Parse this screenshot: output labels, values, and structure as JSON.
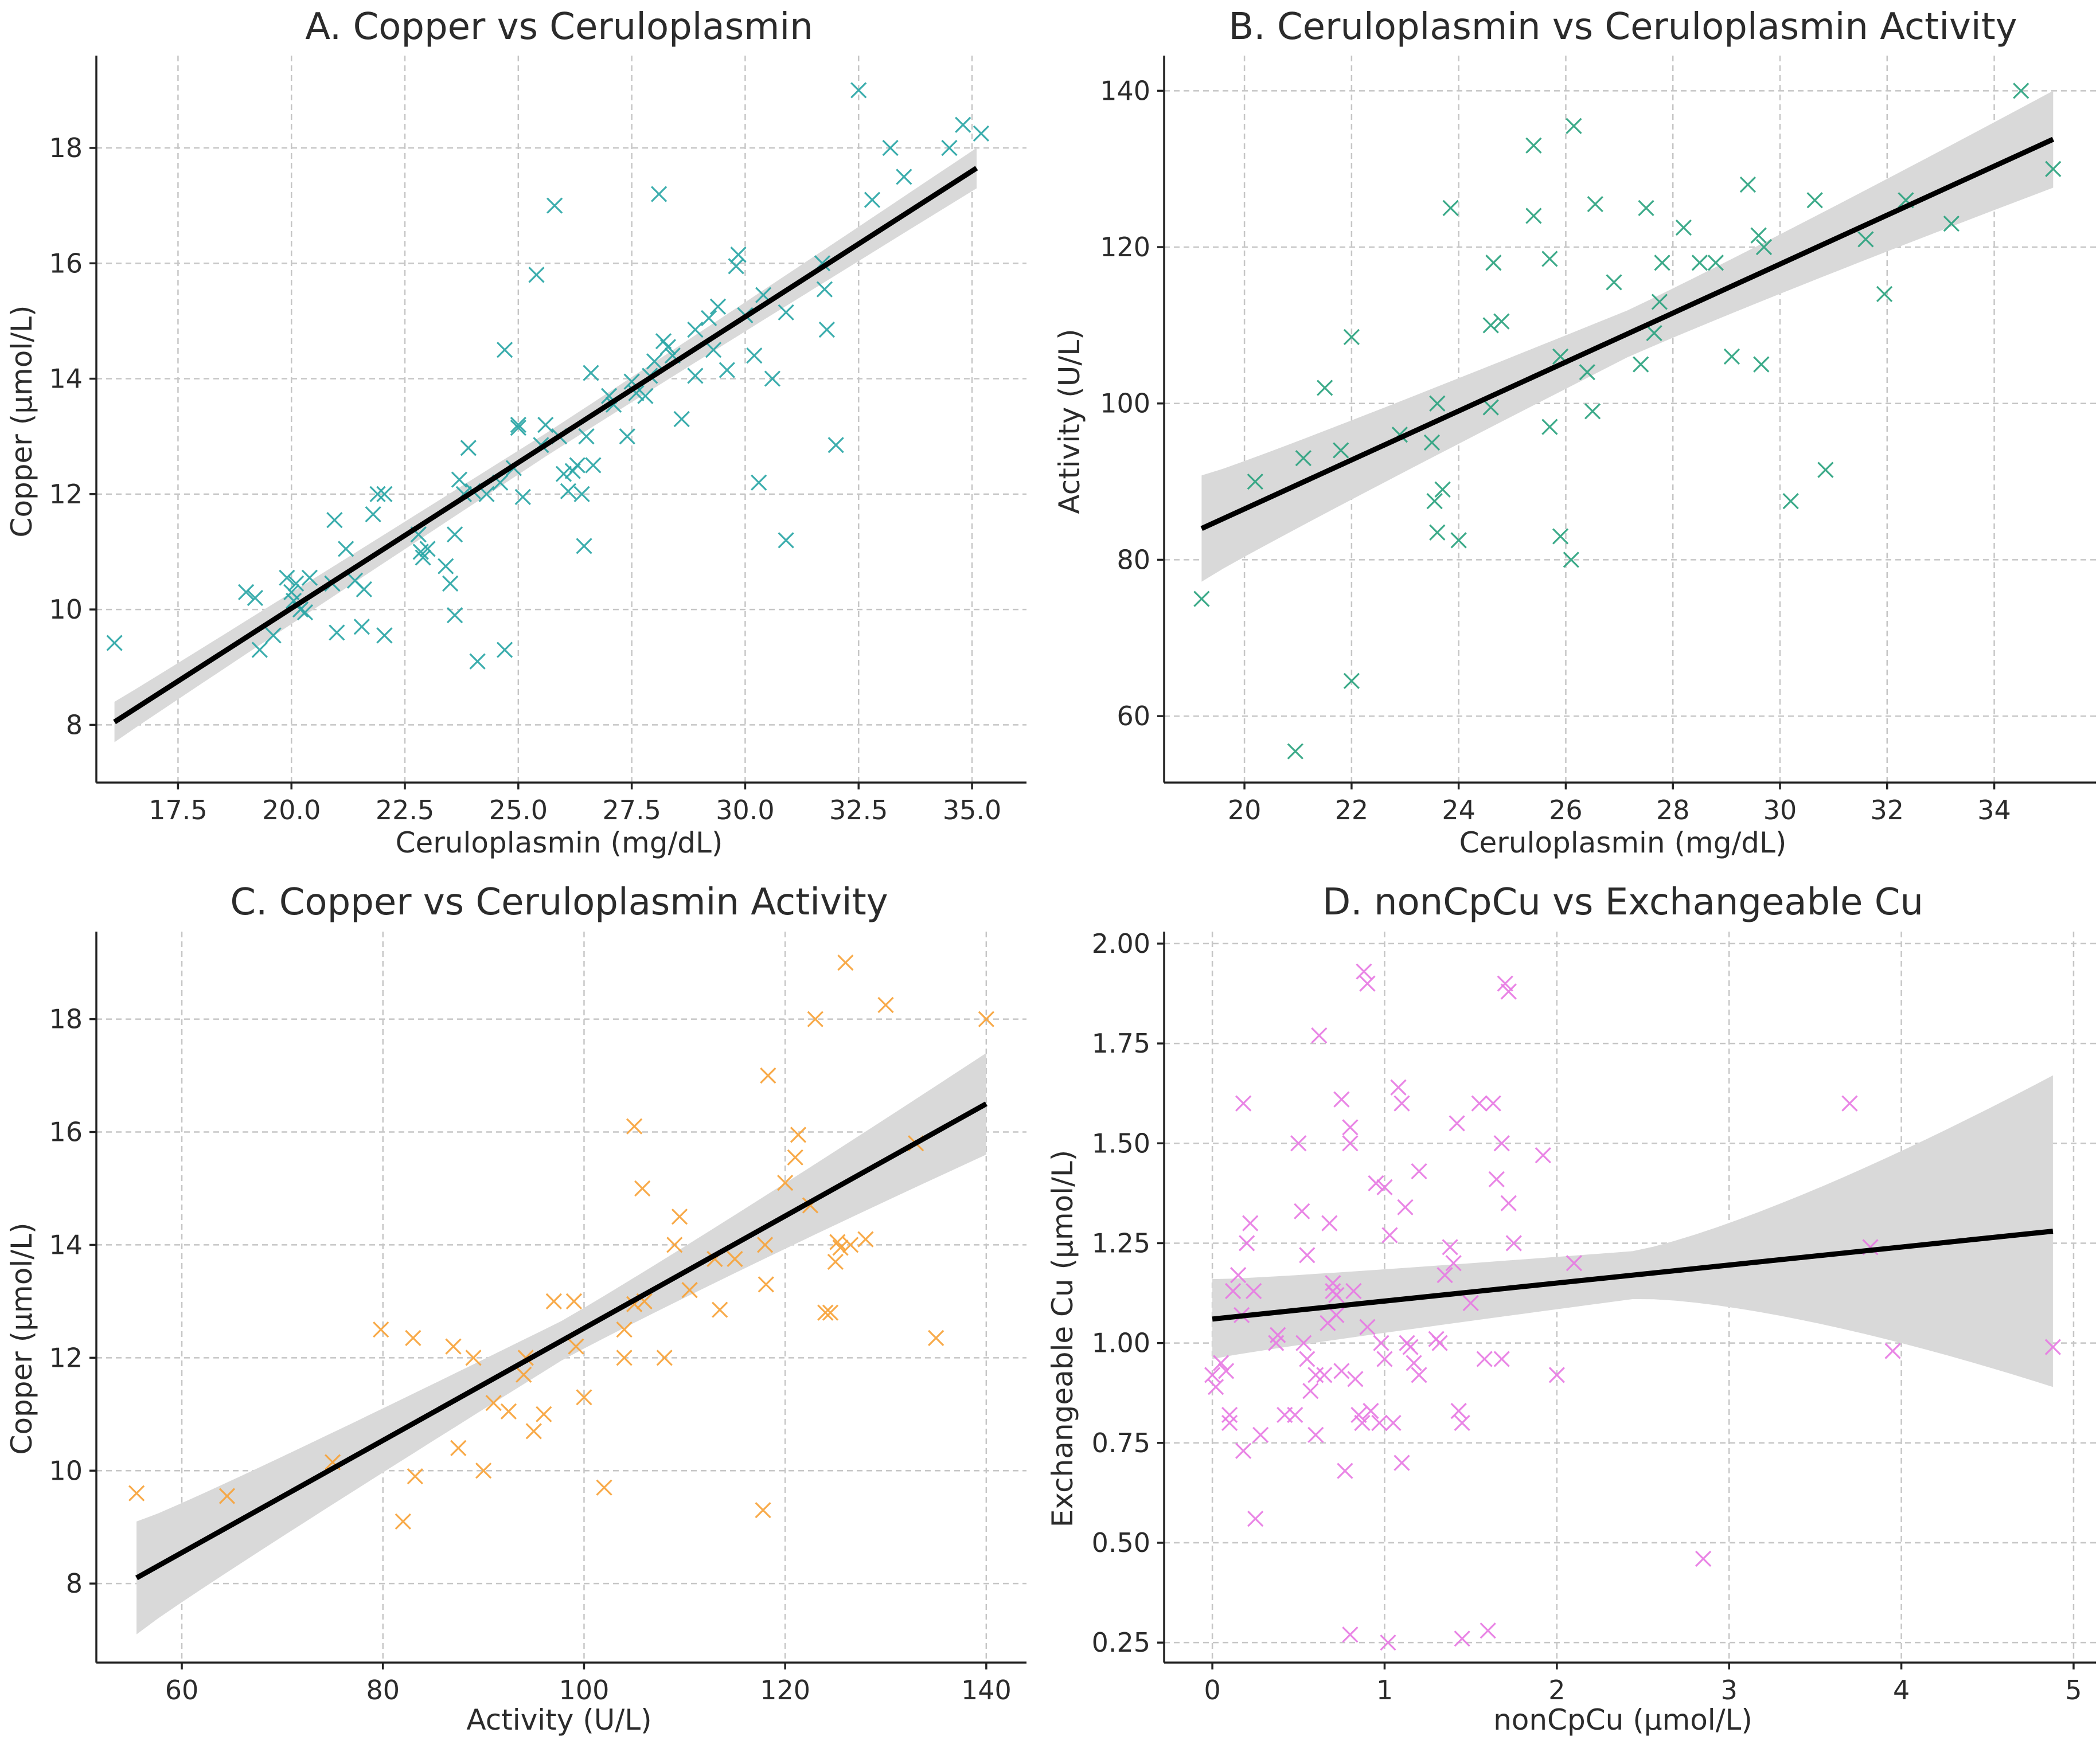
{
  "chart_data": [
    {
      "id": "A",
      "type": "scatter",
      "title": "A. Copper vs Ceruloplasmin",
      "xlabel": "Ceruloplasmin (mg/dL)",
      "ylabel": "Copper (µmol/L)",
      "xlim": [
        15.7,
        36.2
      ],
      "ylim": [
        7.0,
        19.6
      ],
      "xticks": [
        17.5,
        20.0,
        22.5,
        25.0,
        27.5,
        30.0,
        32.5,
        35.0
      ],
      "xtick_labels": [
        "17.5",
        "20.0",
        "22.5",
        "25.0",
        "27.5",
        "30.0",
        "32.5",
        "35.0"
      ],
      "yticks": [
        8,
        10,
        12,
        14,
        16,
        18
      ],
      "ytick_labels": [
        "8",
        "10",
        "12",
        "14",
        "16",
        "18"
      ],
      "marker_color": "#2aa6a6",
      "fit": {
        "x": [
          16.1,
          35.1
        ],
        "y": [
          8.05,
          17.65
        ],
        "band": [
          0.35,
          0.2,
          0.35
        ]
      },
      "points": [
        [
          16.1,
          9.42
        ],
        [
          19.0,
          10.3
        ],
        [
          19.2,
          10.2
        ],
        [
          19.3,
          9.3
        ],
        [
          19.6,
          9.55
        ],
        [
          19.9,
          10.55
        ],
        [
          20.0,
          10.3
        ],
        [
          20.05,
          10.15
        ],
        [
          20.1,
          10.45
        ],
        [
          20.2,
          10.0
        ],
        [
          20.3,
          9.95
        ],
        [
          20.4,
          10.55
        ],
        [
          20.9,
          10.45
        ],
        [
          20.95,
          11.55
        ],
        [
          21.0,
          9.6
        ],
        [
          21.2,
          11.05
        ],
        [
          21.4,
          10.5
        ],
        [
          21.55,
          9.7
        ],
        [
          21.6,
          10.35
        ],
        [
          21.8,
          11.65
        ],
        [
          21.9,
          12.0
        ],
        [
          22.05,
          12.0
        ],
        [
          22.05,
          9.55
        ],
        [
          22.8,
          11.3
        ],
        [
          22.85,
          11.0
        ],
        [
          22.9,
          10.9
        ],
        [
          23.0,
          11.05
        ],
        [
          23.4,
          10.75
        ],
        [
          23.5,
          10.45
        ],
        [
          23.6,
          11.3
        ],
        [
          23.6,
          9.9
        ],
        [
          23.7,
          12.25
        ],
        [
          23.8,
          12.0
        ],
        [
          23.9,
          12.8
        ],
        [
          24.0,
          12.05
        ],
        [
          24.1,
          9.1
        ],
        [
          24.3,
          12.0
        ],
        [
          24.6,
          12.2
        ],
        [
          24.7,
          14.5
        ],
        [
          24.7,
          9.3
        ],
        [
          24.9,
          12.45
        ],
        [
          25.0,
          13.15
        ],
        [
          25.0,
          13.2
        ],
        [
          25.1,
          11.95
        ],
        [
          25.4,
          15.8
        ],
        [
          25.5,
          12.85
        ],
        [
          25.6,
          13.2
        ],
        [
          25.8,
          17.0
        ],
        [
          25.9,
          13.0
        ],
        [
          26.0,
          12.35
        ],
        [
          26.1,
          12.05
        ],
        [
          26.2,
          12.4
        ],
        [
          26.3,
          12.5
        ],
        [
          26.4,
          12.0
        ],
        [
          26.45,
          11.1
        ],
        [
          26.5,
          13.0
        ],
        [
          26.6,
          14.1
        ],
        [
          26.65,
          12.5
        ],
        [
          27.0,
          13.7
        ],
        [
          27.1,
          13.55
        ],
        [
          27.4,
          13.0
        ],
        [
          27.5,
          13.95
        ],
        [
          27.6,
          13.75
        ],
        [
          27.8,
          13.7
        ],
        [
          27.9,
          14.05
        ],
        [
          28.0,
          14.3
        ],
        [
          28.1,
          17.2
        ],
        [
          28.2,
          14.65
        ],
        [
          28.3,
          14.55
        ],
        [
          28.4,
          14.4
        ],
        [
          28.6,
          13.3
        ],
        [
          28.9,
          14.05
        ],
        [
          28.9,
          14.85
        ],
        [
          29.2,
          15.05
        ],
        [
          29.3,
          14.5
        ],
        [
          29.4,
          15.25
        ],
        [
          29.6,
          14.15
        ],
        [
          29.8,
          15.95
        ],
        [
          29.85,
          16.15
        ],
        [
          30.0,
          15.1
        ],
        [
          30.2,
          14.4
        ],
        [
          30.3,
          12.2
        ],
        [
          30.4,
          15.45
        ],
        [
          30.6,
          14.0
        ],
        [
          30.9,
          11.2
        ],
        [
          30.9,
          15.15
        ],
        [
          31.7,
          16.0
        ],
        [
          31.75,
          15.55
        ],
        [
          31.8,
          14.85
        ],
        [
          32.0,
          12.85
        ],
        [
          32.5,
          19.0
        ],
        [
          32.8,
          17.1
        ],
        [
          33.2,
          18.0
        ],
        [
          33.5,
          17.5
        ],
        [
          34.5,
          18.0
        ],
        [
          34.8,
          18.4
        ],
        [
          35.2,
          18.25
        ]
      ]
    },
    {
      "id": "B",
      "type": "scatter",
      "title": "B. Ceruloplasmin vs Ceruloplasmin Activity",
      "xlabel": "Ceruloplasmin (mg/dL)",
      "ylabel": "Activity (U/L)",
      "xlim": [
        18.5,
        35.9
      ],
      "ylim": [
        51.5,
        144.5
      ],
      "xticks": [
        20,
        22,
        24,
        26,
        28,
        30,
        32,
        34
      ],
      "xtick_labels": [
        "20",
        "22",
        "24",
        "26",
        "28",
        "30",
        "32",
        "34"
      ],
      "yticks": [
        60,
        80,
        100,
        120,
        140
      ],
      "ytick_labels": [
        "60",
        "80",
        "100",
        "120",
        "140"
      ],
      "marker_color": "#2ba37f",
      "fit": {
        "x": [
          19.2,
          35.1
        ],
        "y": [
          84.0,
          133.8
        ],
        "band": [
          6.8,
          3.0,
          6.2
        ]
      },
      "points": [
        [
          19.2,
          75.0
        ],
        [
          20.2,
          90.0
        ],
        [
          20.95,
          55.5
        ],
        [
          21.1,
          93.0
        ],
        [
          21.5,
          102.0
        ],
        [
          21.8,
          94.0
        ],
        [
          22.0,
          108.5
        ],
        [
          22.0,
          64.5
        ],
        [
          22.9,
          96.0
        ],
        [
          23.5,
          95.0
        ],
        [
          23.55,
          87.5
        ],
        [
          23.6,
          100.0
        ],
        [
          23.6,
          83.5
        ],
        [
          23.7,
          89.0
        ],
        [
          23.85,
          125.0
        ],
        [
          24.0,
          82.5
        ],
        [
          24.6,
          99.5
        ],
        [
          24.6,
          110.0
        ],
        [
          24.65,
          118.0
        ],
        [
          24.8,
          110.5
        ],
        [
          25.4,
          133.0
        ],
        [
          25.4,
          124.0
        ],
        [
          25.7,
          118.5
        ],
        [
          25.7,
          97.0
        ],
        [
          25.9,
          106.0
        ],
        [
          25.9,
          83.0
        ],
        [
          26.1,
          80.0
        ],
        [
          26.15,
          135.5
        ],
        [
          26.4,
          104.0
        ],
        [
          26.5,
          99.0
        ],
        [
          26.55,
          125.5
        ],
        [
          26.9,
          115.5
        ],
        [
          27.4,
          105.0
        ],
        [
          27.5,
          125.0
        ],
        [
          27.65,
          109.0
        ],
        [
          27.75,
          113.0
        ],
        [
          27.8,
          118.0
        ],
        [
          28.2,
          122.5
        ],
        [
          28.5,
          118.0
        ],
        [
          28.8,
          118.0
        ],
        [
          29.1,
          106.0
        ],
        [
          29.4,
          128.0
        ],
        [
          29.6,
          121.5
        ],
        [
          29.65,
          105.0
        ],
        [
          29.7,
          120.0
        ],
        [
          30.2,
          87.5
        ],
        [
          30.65,
          126.0
        ],
        [
          30.85,
          91.5
        ],
        [
          31.6,
          121.0
        ],
        [
          31.95,
          114.0
        ],
        [
          32.35,
          126.0
        ],
        [
          33.2,
          123.0
        ],
        [
          34.5,
          140.0
        ],
        [
          35.1,
          130.0
        ]
      ]
    },
    {
      "id": "C",
      "type": "scatter",
      "title": "C. Copper vs Ceruloplasmin Activity",
      "xlabel": "Activity (U/L)",
      "ylabel": "Copper (µmol/L)",
      "xlim": [
        51.5,
        144.0
      ],
      "ylim": [
        6.6,
        19.55
      ],
      "xticks": [
        60,
        80,
        100,
        120,
        140
      ],
      "xtick_labels": [
        "60",
        "80",
        "100",
        "120",
        "140"
      ],
      "yticks": [
        8,
        10,
        12,
        14,
        16,
        18
      ],
      "ytick_labels": [
        "8",
        "10",
        "12",
        "14",
        "16",
        "18"
      ],
      "marker_color": "#f7a33a",
      "fit": {
        "x": [
          55.5,
          140.0
        ],
        "y": [
          8.1,
          16.5
        ],
        "band": [
          1.0,
          0.35,
          0.9
        ]
      },
      "points": [
        [
          55.5,
          9.6
        ],
        [
          64.5,
          9.55
        ],
        [
          75.0,
          10.15
        ],
        [
          79.8,
          12.5
        ],
        [
          82.0,
          9.1
        ],
        [
          83.0,
          12.35
        ],
        [
          83.2,
          9.9
        ],
        [
          87.0,
          12.2
        ],
        [
          87.5,
          10.4
        ],
        [
          89.0,
          12.0
        ],
        [
          90.0,
          10.0
        ],
        [
          91.0,
          11.2
        ],
        [
          92.5,
          11.05
        ],
        [
          94.0,
          11.7
        ],
        [
          94.2,
          12.0
        ],
        [
          95.0,
          10.7
        ],
        [
          96.0,
          11.0
        ],
        [
          97.0,
          13.0
        ],
        [
          99.0,
          13.0
        ],
        [
          99.2,
          12.2
        ],
        [
          100.0,
          11.3
        ],
        [
          102.0,
          9.7
        ],
        [
          104.0,
          12.5
        ],
        [
          104.0,
          12.0
        ],
        [
          105.0,
          16.1
        ],
        [
          105.0,
          12.95
        ],
        [
          105.8,
          15.0
        ],
        [
          106.0,
          13.0
        ],
        [
          108.0,
          12.0
        ],
        [
          109.0,
          14.0
        ],
        [
          109.5,
          14.5
        ],
        [
          110.5,
          13.2
        ],
        [
          113.0,
          13.75
        ],
        [
          113.5,
          12.85
        ],
        [
          115.0,
          13.75
        ],
        [
          117.8,
          9.3
        ],
        [
          118.0,
          14.0
        ],
        [
          118.1,
          13.3
        ],
        [
          118.3,
          17.0
        ],
        [
          120.0,
          15.1
        ],
        [
          121.0,
          15.55
        ],
        [
          121.3,
          15.95
        ],
        [
          122.5,
          14.7
        ],
        [
          123.0,
          18.0
        ],
        [
          124.0,
          12.8
        ],
        [
          124.5,
          12.8
        ],
        [
          125.0,
          13.7
        ],
        [
          125.2,
          14.05
        ],
        [
          125.5,
          13.95
        ],
        [
          126.0,
          19.0
        ],
        [
          126.5,
          14.0
        ],
        [
          128.0,
          14.1
        ],
        [
          130.0,
          18.25
        ],
        [
          133.0,
          15.8
        ],
        [
          135.0,
          12.35
        ],
        [
          140.0,
          18.0
        ]
      ]
    },
    {
      "id": "D",
      "type": "scatter",
      "title": "D. nonCpCu vs Exchangeable Cu",
      "xlabel": "nonCpCu (µmol/L)",
      "ylabel": "Exchangeable Cu (µmol/L)",
      "xlim": [
        -0.28,
        5.13
      ],
      "ylim": [
        0.2,
        2.03
      ],
      "xticks": [
        0,
        1,
        2,
        3,
        4,
        5
      ],
      "xtick_labels": [
        "0",
        "1",
        "2",
        "3",
        "4",
        "5"
      ],
      "yticks": [
        0.25,
        0.5,
        0.75,
        1.0,
        1.25,
        1.5,
        1.75,
        2.0
      ],
      "ytick_labels": [
        "0.25",
        "0.50",
        "0.75",
        "1.00",
        "1.25",
        "1.50",
        "1.75",
        "2.00"
      ],
      "marker_color": "#e77be3",
      "fit": {
        "x": [
          0.0,
          4.88
        ],
        "y": [
          1.06,
          1.28
        ],
        "band": [
          0.1,
          0.06,
          0.39
        ]
      },
      "points": [
        [
          0.0,
          0.92
        ],
        [
          0.02,
          0.89
        ],
        [
          0.05,
          0.95
        ],
        [
          0.08,
          0.93
        ],
        [
          0.1,
          0.82
        ],
        [
          0.1,
          0.8
        ],
        [
          0.12,
          1.13
        ],
        [
          0.15,
          1.17
        ],
        [
          0.17,
          1.07
        ],
        [
          0.18,
          0.73
        ],
        [
          0.18,
          1.6
        ],
        [
          0.2,
          1.25
        ],
        [
          0.22,
          1.3
        ],
        [
          0.24,
          1.13
        ],
        [
          0.25,
          0.56
        ],
        [
          0.28,
          0.77
        ],
        [
          0.37,
          1.0
        ],
        [
          0.38,
          1.02
        ],
        [
          0.42,
          0.82
        ],
        [
          0.48,
          0.82
        ],
        [
          0.5,
          1.5
        ],
        [
          0.52,
          1.33
        ],
        [
          0.53,
          1.0
        ],
        [
          0.55,
          0.96
        ],
        [
          0.55,
          1.22
        ],
        [
          0.57,
          0.88
        ],
        [
          0.6,
          0.92
        ],
        [
          0.6,
          0.77
        ],
        [
          0.62,
          1.77
        ],
        [
          0.65,
          0.92
        ],
        [
          0.67,
          1.05
        ],
        [
          0.68,
          1.3
        ],
        [
          0.7,
          1.15
        ],
        [
          0.7,
          1.13
        ],
        [
          0.72,
          1.12
        ],
        [
          0.72,
          1.07
        ],
        [
          0.75,
          1.61
        ],
        [
          0.75,
          0.93
        ],
        [
          0.77,
          0.68
        ],
        [
          0.8,
          1.54
        ],
        [
          0.8,
          1.5
        ],
        [
          0.8,
          0.27
        ],
        [
          0.82,
          1.13
        ],
        [
          0.83,
          0.91
        ],
        [
          0.85,
          0.82
        ],
        [
          0.87,
          0.8
        ],
        [
          0.88,
          1.93
        ],
        [
          0.9,
          1.9
        ],
        [
          0.9,
          1.04
        ],
        [
          0.92,
          0.83
        ],
        [
          0.95,
          1.4
        ],
        [
          0.97,
          0.8
        ],
        [
          0.98,
          1.0
        ],
        [
          1.0,
          0.96
        ],
        [
          1.0,
          1.39
        ],
        [
          1.02,
          0.25
        ],
        [
          1.03,
          1.27
        ],
        [
          1.05,
          0.8
        ],
        [
          1.08,
          1.64
        ],
        [
          1.1,
          1.6
        ],
        [
          1.1,
          0.7
        ],
        [
          1.12,
          1.34
        ],
        [
          1.13,
          1.0
        ],
        [
          1.15,
          0.99
        ],
        [
          1.17,
          0.95
        ],
        [
          1.2,
          0.92
        ],
        [
          1.2,
          1.43
        ],
        [
          1.3,
          1.01
        ],
        [
          1.32,
          1.0
        ],
        [
          1.35,
          1.17
        ],
        [
          1.38,
          1.24
        ],
        [
          1.4,
          1.2
        ],
        [
          1.42,
          1.55
        ],
        [
          1.43,
          0.83
        ],
        [
          1.45,
          0.26
        ],
        [
          1.45,
          0.8
        ],
        [
          1.5,
          1.1
        ],
        [
          1.55,
          1.6
        ],
        [
          1.58,
          0.96
        ],
        [
          1.6,
          0.28
        ],
        [
          1.63,
          1.6
        ],
        [
          1.65,
          1.41
        ],
        [
          1.68,
          1.5
        ],
        [
          1.7,
          1.9
        ],
        [
          1.72,
          1.88
        ],
        [
          1.72,
          1.35
        ],
        [
          1.75,
          1.25
        ],
        [
          1.68,
          0.96
        ],
        [
          1.92,
          1.47
        ],
        [
          2.0,
          0.92
        ],
        [
          2.1,
          1.2
        ],
        [
          2.85,
          0.46
        ],
        [
          3.7,
          1.6
        ],
        [
          3.82,
          1.24
        ],
        [
          3.95,
          0.98
        ],
        [
          4.88,
          0.99
        ]
      ]
    }
  ]
}
